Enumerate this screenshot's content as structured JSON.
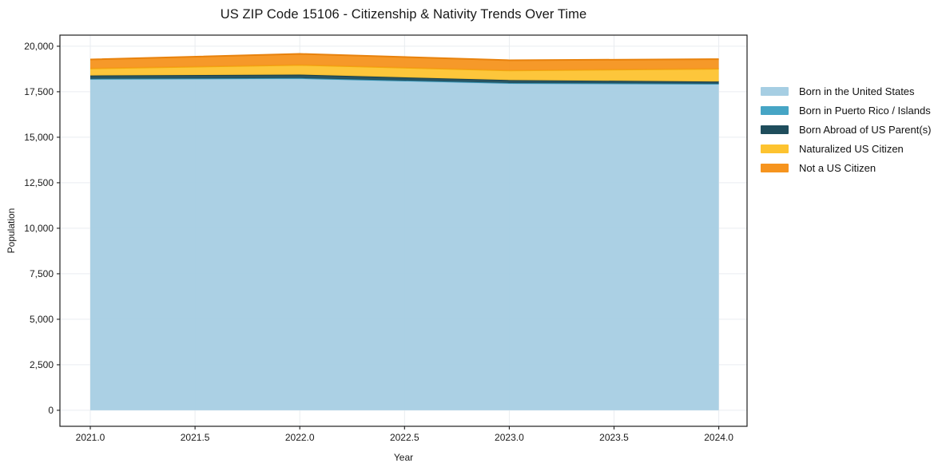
{
  "figure": {
    "background": "#ffffff",
    "spine_color": "#1f1f1f",
    "grid_color": "#e9ecf0"
  },
  "chart_data": {
    "type": "area",
    "stacked": true,
    "title": "US ZIP Code 15106 - Citizenship & Nativity Trends Over Time",
    "xlabel": "Year",
    "ylabel": "Population",
    "x": [
      2021,
      2022,
      2023,
      2024
    ],
    "series": [
      {
        "name": "Born in the United States",
        "color": "#a6cee3",
        "edge_color": "#9cc9e0",
        "values": [
          18190,
          18230,
          17960,
          17930
        ]
      },
      {
        "name": "Born in Puerto Rico / Islands",
        "color": "#46a5c5",
        "edge_color": "#3a93b2",
        "values": [
          20,
          20,
          20,
          10
        ]
      },
      {
        "name": "Born Abroad of US Parent(s)",
        "color": "#1f4d5c",
        "edge_color": "#16404e",
        "values": [
          180,
          190,
          160,
          120
        ]
      },
      {
        "name": "Naturalized US Citizen",
        "color": "#fdc330",
        "edge_color": "#f2a90f",
        "values": [
          390,
          530,
          530,
          700
        ]
      },
      {
        "name": "Not a US Citizen",
        "color": "#f6941e",
        "edge_color": "#e8820d",
        "values": [
          490,
          610,
          560,
          530
        ]
      }
    ],
    "x_ticks": [
      2021.0,
      2021.5,
      2022.0,
      2022.5,
      2023.0,
      2023.5,
      2024.0
    ],
    "x_tick_labels": [
      "2021.0",
      "2021.5",
      "2022.0",
      "2022.5",
      "2023.0",
      "2023.5",
      "2024.0"
    ],
    "y_ticks": [
      0,
      2500,
      5000,
      7500,
      10000,
      12500,
      15000,
      17500,
      20000
    ],
    "y_tick_labels": [
      "0",
      "2,500",
      "5,000",
      "7,500",
      "10,000",
      "12,500",
      "15,000",
      "17,500",
      "20,000"
    ],
    "xlim": [
      2020.855,
      2024.135
    ],
    "ylim": [
      -880,
      20610
    ],
    "grid": true,
    "legend_position": "right",
    "legend_frame": false
  }
}
